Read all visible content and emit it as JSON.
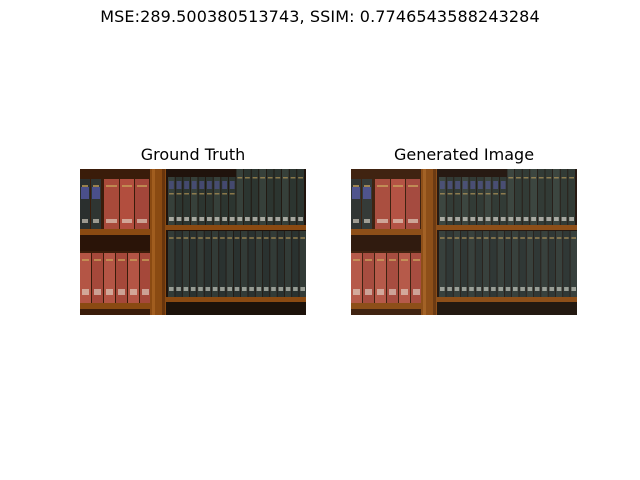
{
  "figure": {
    "title": "MSE:289.500380513743, SSIM: 0.7746543588243284"
  },
  "panels": [
    {
      "title": "Ground Truth",
      "image_description": "bookcase-photo"
    },
    {
      "title": "Generated Image",
      "image_description": "bookcase-photo"
    }
  ],
  "colors": {
    "wood": "#8a4a12",
    "wood_dark": "#4a2208",
    "book_red": "#a84a3a",
    "book_dark": "#2c3530",
    "gold": "#c9a45a"
  }
}
